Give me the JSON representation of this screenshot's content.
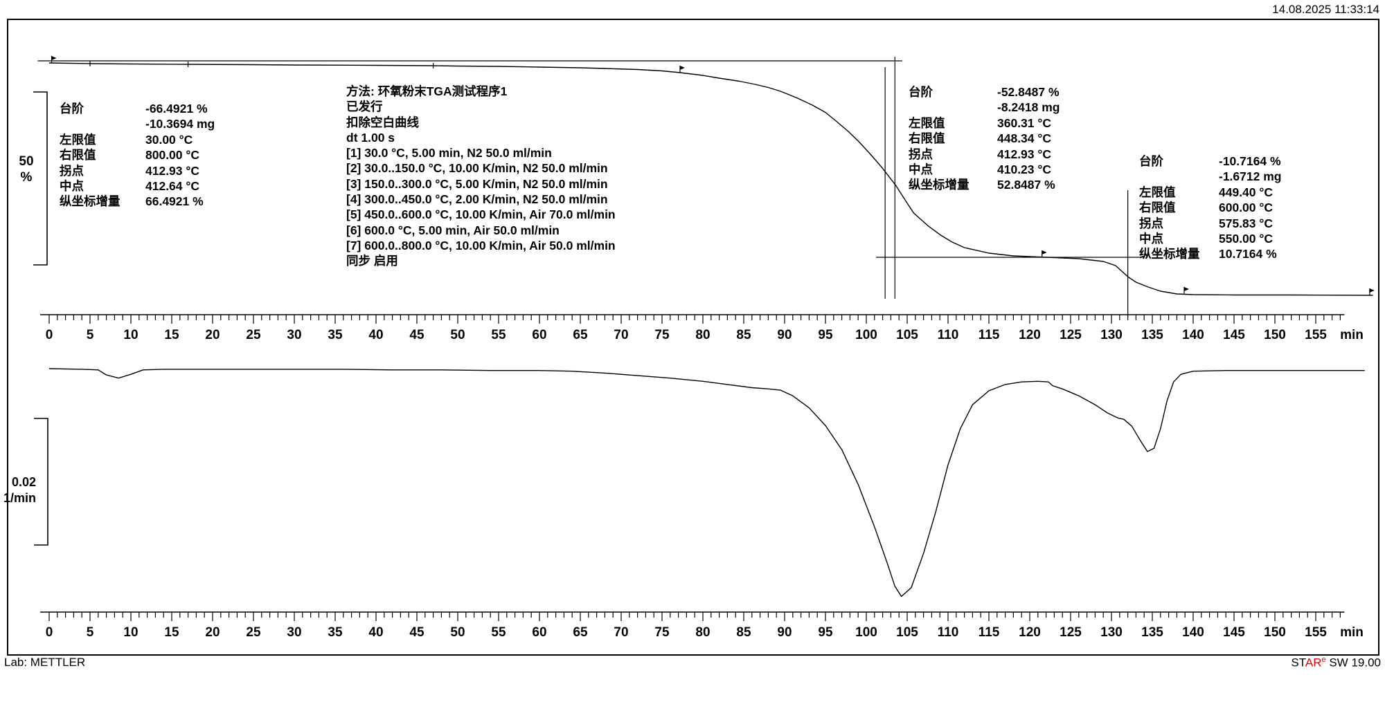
{
  "header": {
    "timestamp": "14.08.2025 11:33:14"
  },
  "footer": {
    "lab": "Lab: METTLER",
    "software": {
      "p1": "ST",
      "p2": "AR",
      "sup": "e",
      "p3": " SW 19.00",
      "red": "#e60000"
    }
  },
  "scale_markers": {
    "tga": {
      "value": "50",
      "unit": "%"
    },
    "dtg": {
      "value": "0.02",
      "unit": "1/min"
    }
  },
  "method": {
    "lines": [
      "方法: 环氧粉末TGA测试程序1",
      "已发行",
      "扣除空白曲线",
      "dt 1.00 s",
      "[1] 30.0 °C, 5.00 min, N2 50.0 ml/min",
      "[2] 30.0..150.0 °C, 10.00 K/min, N2 50.0 ml/min",
      "[3] 150.0..300.0 °C, 5.00 K/min, N2 50.0 ml/min",
      "[4] 300.0..450.0 °C, 2.00 K/min, N2 50.0 ml/min",
      "[5] 450.0..600.0 °C, 10.00 K/min, Air 70.0 ml/min",
      "[6] 600.0 °C, 5.00 min, Air 50.0 ml/min",
      "[7] 600.0..800.0 °C, 10.00 K/min, Air 50.0 ml/min",
      "同步 启用"
    ]
  },
  "results": [
    {
      "rows": [
        {
          "label": "台阶",
          "value": "-66.4921 %"
        },
        {
          "label": "",
          "value": "-10.3694 mg"
        },
        {
          "label": "左限值",
          "value": "30.00 °C"
        },
        {
          "label": "右限值",
          "value": "800.00 °C"
        },
        {
          "label": "拐点",
          "value": "412.93 °C"
        },
        {
          "label": "中点",
          "value": "412.64 °C"
        },
        {
          "label": "纵坐标增量",
          "value": "66.4921 %"
        }
      ]
    },
    {
      "rows": [
        {
          "label": "台阶",
          "value": "-52.8487 %"
        },
        {
          "label": "",
          "value": "-8.2418 mg"
        },
        {
          "label": "左限值",
          "value": "360.31 °C"
        },
        {
          "label": "右限值",
          "value": "448.34 °C"
        },
        {
          "label": "拐点",
          "value": "412.93 °C"
        },
        {
          "label": "中点",
          "value": "410.23 °C"
        },
        {
          "label": "纵坐标增量",
          "value": "52.8487 %"
        }
      ]
    },
    {
      "rows": [
        {
          "label": "台阶",
          "value": "-10.7164 %"
        },
        {
          "label": "",
          "value": "-1.6712 mg"
        },
        {
          "label": "左限值",
          "value": "449.40 °C"
        },
        {
          "label": "右限值",
          "value": "600.00 °C"
        },
        {
          "label": "拐点",
          "value": "575.83 °C"
        },
        {
          "label": "中点",
          "value": "550.00 °C"
        },
        {
          "label": "纵坐标增量",
          "value": "10.7164 %"
        }
      ]
    }
  ],
  "chart_data": [
    {
      "type": "line",
      "name": "TGA mass curve",
      "x_unit": "min",
      "y_unit": "% mass",
      "scale_bar": "50 %",
      "axis": {
        "min": 0,
        "max": 155,
        "major_step": 5,
        "minor_step": 1,
        "minor_max": 158,
        "unit": "min"
      },
      "points": [
        [
          0,
          99.8
        ],
        [
          5,
          99.6
        ],
        [
          10,
          99.5
        ],
        [
          17,
          99.4
        ],
        [
          25,
          99.3
        ],
        [
          30,
          99.2
        ],
        [
          40,
          99.1
        ],
        [
          47,
          99.0
        ],
        [
          50,
          98.9
        ],
        [
          55,
          98.8
        ],
        [
          60,
          98.6
        ],
        [
          65,
          98.4
        ],
        [
          68,
          98.2
        ],
        [
          72,
          97.9
        ],
        [
          75,
          97.5
        ],
        [
          77.2,
          97.0
        ],
        [
          80,
          96.2
        ],
        [
          82,
          95.4
        ],
        [
          84.5,
          94.5
        ],
        [
          86.4,
          93.6
        ],
        [
          88,
          92.7
        ],
        [
          89.5,
          91.6
        ],
        [
          91.5,
          89.7
        ],
        [
          93.4,
          87.6
        ],
        [
          95,
          85.5
        ],
        [
          96.3,
          83.0
        ],
        [
          97.8,
          80.0
        ],
        [
          99.1,
          77.0
        ],
        [
          100.5,
          73.4
        ],
        [
          101.9,
          69.6
        ],
        [
          103.6,
          64.4
        ],
        [
          104.8,
          60.0
        ],
        [
          105.8,
          56.4
        ],
        [
          107.5,
          52.8
        ],
        [
          109.1,
          50.0
        ],
        [
          110.5,
          48.0
        ],
        [
          112,
          46.4
        ],
        [
          115,
          44.8
        ],
        [
          118,
          44.0
        ],
        [
          122,
          43.6
        ],
        [
          126,
          43.2
        ],
        [
          129,
          42.4
        ],
        [
          130.5,
          41.2
        ],
        [
          132,
          38.0
        ],
        [
          133,
          36.4
        ],
        [
          134.5,
          35.0
        ],
        [
          136,
          33.8
        ],
        [
          138,
          33.0
        ],
        [
          140,
          32.8
        ],
        [
          145,
          32.7
        ],
        [
          152,
          32.7
        ],
        [
          162,
          32.6
        ]
      ]
    },
    {
      "type": "line",
      "name": "DTG derivative curve",
      "x_unit": "min",
      "y_unit": "1/min",
      "scale_bar": "0.02 1/min",
      "axis": {
        "min": 0,
        "max": 155,
        "major_step": 5,
        "minor_step": 1,
        "minor_max": 158,
        "unit": "min"
      },
      "points": [
        [
          0,
          0
        ],
        [
          4,
          -0.0001
        ],
        [
          6,
          -0.0002
        ],
        [
          7,
          -0.001
        ],
        [
          8.5,
          -0.0015
        ],
        [
          10,
          -0.0009
        ],
        [
          11.5,
          -0.0002
        ],
        [
          14,
          -0.0001
        ],
        [
          20,
          -0.0001
        ],
        [
          26,
          -0.0001
        ],
        [
          30,
          -0.0001
        ],
        [
          36,
          -0.0001
        ],
        [
          42,
          -0.0002
        ],
        [
          48,
          -0.0002
        ],
        [
          54,
          -0.0003
        ],
        [
          60,
          -0.0003
        ],
        [
          64,
          -0.0004
        ],
        [
          68,
          -0.0007
        ],
        [
          72,
          -0.0011
        ],
        [
          76,
          -0.0015
        ],
        [
          80,
          -0.002
        ],
        [
          83,
          -0.0025
        ],
        [
          86,
          -0.003
        ],
        [
          88,
          -0.0032
        ],
        [
          89.5,
          -0.0034
        ],
        [
          91,
          -0.0043
        ],
        [
          93,
          -0.0062
        ],
        [
          95,
          -0.009
        ],
        [
          97,
          -0.0128
        ],
        [
          99,
          -0.0183
        ],
        [
          101,
          -0.025
        ],
        [
          102.5,
          -0.0305
        ],
        [
          103.5,
          -0.0344
        ],
        [
          104.3,
          -0.036
        ],
        [
          105.5,
          -0.0346
        ],
        [
          107,
          -0.0292
        ],
        [
          108.5,
          -0.0226
        ],
        [
          110,
          -0.0152
        ],
        [
          111.5,
          -0.0095
        ],
        [
          113,
          -0.0057
        ],
        [
          115,
          -0.0035
        ],
        [
          117,
          -0.0025
        ],
        [
          119,
          -0.0021
        ],
        [
          121,
          -0.002
        ],
        [
          122.3,
          -0.0021
        ],
        [
          122.8,
          -0.0027
        ],
        [
          124,
          -0.0032
        ],
        [
          126,
          -0.0043
        ],
        [
          128,
          -0.0057
        ],
        [
          129.5,
          -0.007
        ],
        [
          130.8,
          -0.0078
        ],
        [
          131.5,
          -0.008
        ],
        [
          132.5,
          -0.0091
        ],
        [
          133.5,
          -0.0113
        ],
        [
          134.4,
          -0.0131
        ],
        [
          135.2,
          -0.0126
        ],
        [
          136,
          -0.0095
        ],
        [
          136.8,
          -0.0051
        ],
        [
          137.6,
          -0.0021
        ],
        [
          138.5,
          -0.0009
        ],
        [
          140,
          -0.0004
        ],
        [
          144,
          -0.0003
        ],
        [
          150,
          -0.0003
        ],
        [
          156,
          -0.0003
        ],
        [
          161,
          -0.0003
        ]
      ]
    }
  ],
  "annotations": {
    "h_lines": [
      {
        "pct": 100.4,
        "t1": -1.4,
        "t2": 104.4
      },
      {
        "pct": 43.6,
        "t1": 101.2,
        "t2": 133.4
      }
    ],
    "v_lines": [
      {
        "t": 102.3,
        "pct_top": 98.6,
        "pct_bot": 31.6
      },
      {
        "t": 103.5,
        "pct_top": 101.6,
        "pct_bot": 31.6
      },
      {
        "t": 132.0,
        "pct_top": 63.0,
        "pct_bot": 26.2
      }
    ],
    "flags": [
      {
        "t": 0.3,
        "pct": 99.8
      },
      {
        "t": 77.2,
        "pct": 97.0
      },
      {
        "t": 121.5,
        "pct": 43.6
      },
      {
        "t": 138.9,
        "pct": 33.0
      },
      {
        "t": 161.6,
        "pct": 32.6
      }
    ],
    "curve_ticks": [
      {
        "t": 5,
        "pct": 99.6
      },
      {
        "t": 17,
        "pct": 99.4
      },
      {
        "t": 47,
        "pct": 99.0
      }
    ]
  }
}
